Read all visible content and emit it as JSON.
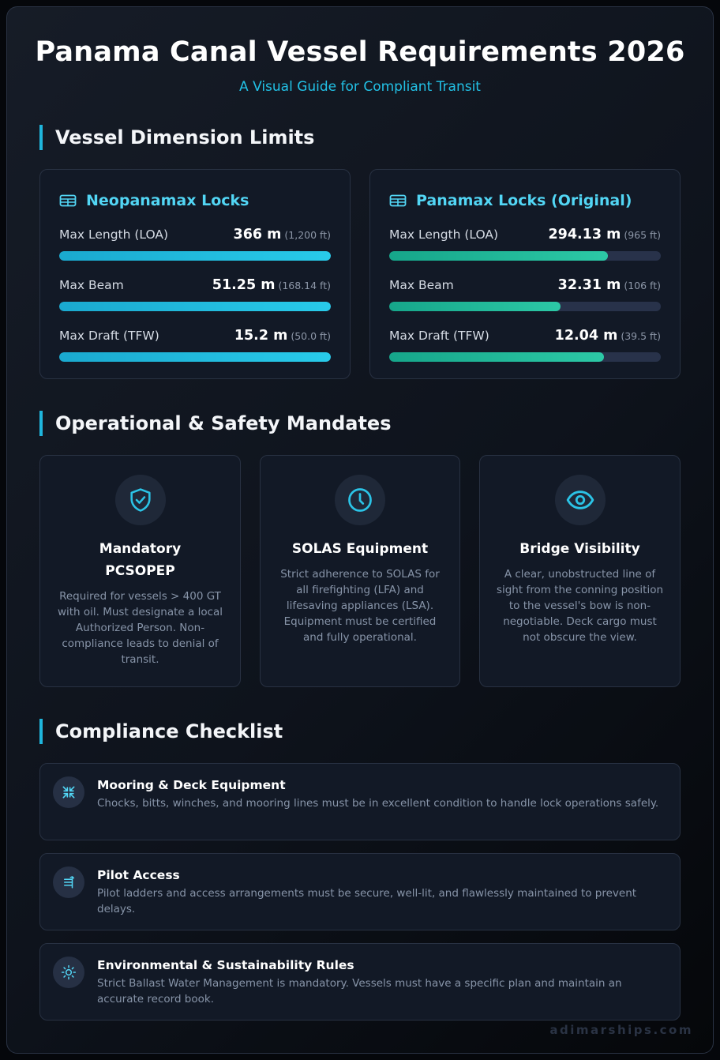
{
  "header": {
    "title": "Panama Canal Vessel Requirements 2026",
    "subtitle": "A Visual Guide for Compliant Transit"
  },
  "sections": {
    "dimensions": "Vessel Dimension Limits",
    "mandates": "Operational & Safety Mandates",
    "checklist": "Compliance Checklist"
  },
  "locks": [
    {
      "name": "Neopanamax Locks",
      "icon": "ship-icon",
      "color": "#1fb6dd",
      "metrics": [
        {
          "label": "Max Length (LOA)",
          "value": "366 m",
          "imperial": "(1,200 ft)",
          "fill_fraction": 1.0
        },
        {
          "label": "Max Beam",
          "value": "51.25 m",
          "imperial": "(168.14 ft)",
          "fill_fraction": 1.0
        },
        {
          "label": "Max Draft (TFW)",
          "value": "15.2 m",
          "imperial": "(50.0 ft)",
          "fill_fraction": 1.0
        }
      ]
    },
    {
      "name": "Panamax Locks (Original)",
      "icon": "ship-icon",
      "color": "#22b89a",
      "metrics": [
        {
          "label": "Max Length (LOA)",
          "value": "294.13 m",
          "imperial": "(965 ft)",
          "fill_fraction": 0.804
        },
        {
          "label": "Max Beam",
          "value": "32.31 m",
          "imperial": "(106 ft)",
          "fill_fraction": 0.63
        },
        {
          "label": "Max Draft (TFW)",
          "value": "12.04 m",
          "imperial": "(39.5 ft)",
          "fill_fraction": 0.792
        }
      ]
    }
  ],
  "mandates": [
    {
      "icon": "shield-check-icon",
      "title": "Mandatory PCSOPEP",
      "description": "Required for vessels > 400 GT with oil. Must designate a local Authorized Person. Non-compliance leads to denial of transit."
    },
    {
      "icon": "clock-icon",
      "title": "SOLAS Equipment",
      "description": "Strict adherence to SOLAS for all firefighting (LFA) and lifesaving appliances (LSA). Equipment must be certified and fully operational."
    },
    {
      "icon": "eye-icon",
      "title": "Bridge Visibility",
      "description": "A clear, unobstructed line of sight from the conning position to the vessel's bow is non-negotiable. Deck cargo must not obscure the view."
    }
  ],
  "checklist": [
    {
      "icon": "compress-arrows-icon",
      "title": "Mooring & Deck Equipment",
      "description": "Chocks, bitts, winches, and mooring lines must be in excellent condition to handle lock operations safely."
    },
    {
      "icon": "ladder-icon",
      "title": "Pilot Access",
      "description": "Pilot ladders and access arrangements must be secure, well-lit, and flawlessly maintained to prevent delays."
    },
    {
      "icon": "sun-icon",
      "title": "Environmental & Sustainability Rules",
      "description": "Strict Ballast Water Management is mandatory. Vessels must have a specific plan and maintain an accurate record book."
    }
  ],
  "footer": {
    "watermark": "adimarships.com"
  }
}
